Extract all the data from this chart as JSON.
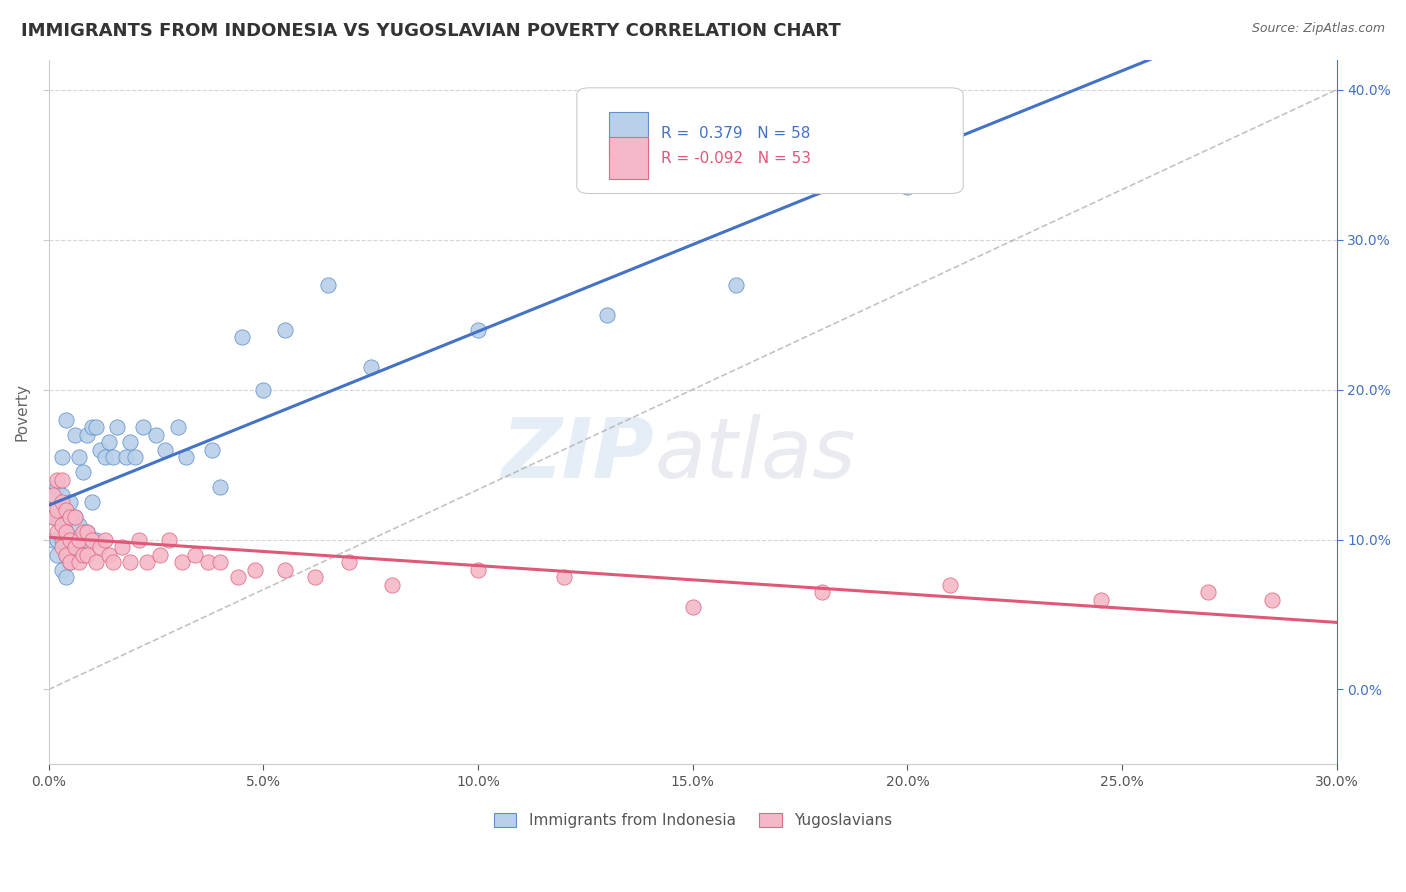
{
  "title": "IMMIGRANTS FROM INDONESIA VS YUGOSLAVIAN POVERTY CORRELATION CHART",
  "source": "Source: ZipAtlas.com",
  "ylabel": "Poverty",
  "xlim": [
    0.0,
    0.3
  ],
  "ylim": [
    -0.05,
    0.42
  ],
  "ylim_display": [
    0.0,
    0.42
  ],
  "r_indonesia": 0.379,
  "n_indonesia": 58,
  "r_yugoslavian": -0.092,
  "n_yugoslavian": 53,
  "indonesia_color": "#b8d0e8",
  "yugoslavian_color": "#f5b8c8",
  "indonesia_edge_color": "#6090cc",
  "yugoslavian_edge_color": "#e06880",
  "indonesia_line_color": "#4472c4",
  "yugoslavian_line_color": "#e05878",
  "diag_line_color": "#aaaaaa",
  "watermark_zip": "ZIP",
  "watermark_atlas": "atlas",
  "legend_label_indonesia": "Immigrants from Indonesia",
  "legend_label_yugoslavian": "Yugoslavians",
  "indonesia_scatter_x": [
    0.001,
    0.001,
    0.001,
    0.002,
    0.002,
    0.002,
    0.002,
    0.003,
    0.003,
    0.003,
    0.003,
    0.003,
    0.004,
    0.004,
    0.004,
    0.004,
    0.004,
    0.005,
    0.005,
    0.005,
    0.006,
    0.006,
    0.006,
    0.007,
    0.007,
    0.007,
    0.008,
    0.008,
    0.009,
    0.009,
    0.01,
    0.01,
    0.011,
    0.011,
    0.012,
    0.013,
    0.014,
    0.015,
    0.016,
    0.018,
    0.019,
    0.02,
    0.022,
    0.025,
    0.027,
    0.03,
    0.032,
    0.038,
    0.04,
    0.045,
    0.05,
    0.055,
    0.065,
    0.075,
    0.1,
    0.13,
    0.16,
    0.2
  ],
  "indonesia_scatter_y": [
    0.1,
    0.115,
    0.13,
    0.09,
    0.1,
    0.115,
    0.135,
    0.08,
    0.1,
    0.115,
    0.13,
    0.155,
    0.075,
    0.09,
    0.105,
    0.12,
    0.18,
    0.085,
    0.1,
    0.125,
    0.095,
    0.115,
    0.17,
    0.09,
    0.11,
    0.155,
    0.1,
    0.145,
    0.105,
    0.17,
    0.125,
    0.175,
    0.1,
    0.175,
    0.16,
    0.155,
    0.165,
    0.155,
    0.175,
    0.155,
    0.165,
    0.155,
    0.175,
    0.17,
    0.16,
    0.175,
    0.155,
    0.16,
    0.135,
    0.235,
    0.2,
    0.24,
    0.27,
    0.215,
    0.24,
    0.25,
    0.27,
    0.335
  ],
  "yugoslavian_scatter_x": [
    0.001,
    0.001,
    0.002,
    0.002,
    0.002,
    0.003,
    0.003,
    0.003,
    0.003,
    0.004,
    0.004,
    0.004,
    0.005,
    0.005,
    0.005,
    0.006,
    0.006,
    0.007,
    0.007,
    0.008,
    0.008,
    0.009,
    0.009,
    0.01,
    0.011,
    0.012,
    0.013,
    0.014,
    0.015,
    0.017,
    0.019,
    0.021,
    0.023,
    0.026,
    0.028,
    0.031,
    0.034,
    0.037,
    0.04,
    0.044,
    0.048,
    0.055,
    0.062,
    0.07,
    0.08,
    0.1,
    0.12,
    0.15,
    0.18,
    0.21,
    0.245,
    0.27,
    0.285
  ],
  "yugoslavian_scatter_y": [
    0.115,
    0.13,
    0.105,
    0.12,
    0.14,
    0.095,
    0.11,
    0.125,
    0.14,
    0.09,
    0.105,
    0.12,
    0.085,
    0.1,
    0.115,
    0.095,
    0.115,
    0.085,
    0.1,
    0.09,
    0.105,
    0.09,
    0.105,
    0.1,
    0.085,
    0.095,
    0.1,
    0.09,
    0.085,
    0.095,
    0.085,
    0.1,
    0.085,
    0.09,
    0.1,
    0.085,
    0.09,
    0.085,
    0.085,
    0.075,
    0.08,
    0.08,
    0.075,
    0.085,
    0.07,
    0.08,
    0.075,
    0.055,
    0.065,
    0.07,
    0.06,
    0.065,
    0.06
  ]
}
